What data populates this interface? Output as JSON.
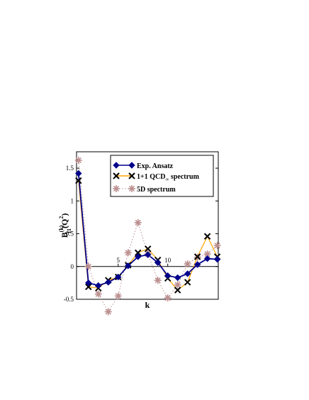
{
  "chart_data": {
    "type": "line",
    "xlabel": "k",
    "ylabel_main": "B",
    "ylabel_sup": "(k)",
    "ylabel_sub": "11",
    "ylabel_arg": "(Q",
    "ylabel_arg_sup": "2",
    "ylabel_arg_close": ")",
    "xlim": [
      0.8,
      15.1
    ],
    "ylim": [
      -0.5,
      1.75
    ],
    "x_ticks": [
      5,
      10
    ],
    "y_ticks": [
      -0.5,
      0,
      0.5,
      1,
      1.5
    ],
    "y_tick_labels": [
      "-0.5",
      "0",
      "0.5",
      "1",
      "1.5"
    ],
    "legend_position": "top-right",
    "series": [
      {
        "name": "Exp. Ansatz",
        "color": "#00008B",
        "marker": "diamond",
        "line": "solid",
        "x": [
          1,
          2,
          3,
          4,
          5,
          6,
          7,
          8,
          9,
          10,
          11,
          12,
          13,
          14,
          15
        ],
        "y": [
          1.42,
          -0.25,
          -0.29,
          -0.24,
          -0.16,
          0.01,
          0.15,
          0.18,
          0.06,
          -0.14,
          -0.17,
          -0.11,
          0.03,
          0.12,
          0.11
        ]
      },
      {
        "name": "1+1 QCD∞ spectrum",
        "name_main": "1+1 QCD",
        "name_sub": "∞",
        "name_tail": " spectrum",
        "color": "#FFA500",
        "marker": "x",
        "line": "solid",
        "x": [
          1,
          2,
          3,
          4,
          5,
          6,
          7,
          8,
          9,
          10,
          11,
          12,
          13,
          14,
          15
        ],
        "y": [
          1.31,
          -0.31,
          -0.33,
          -0.21,
          -0.16,
          0.02,
          0.21,
          0.27,
          0.1,
          -0.18,
          -0.36,
          -0.24,
          0.15,
          0.46,
          0.15
        ]
      },
      {
        "name": "5D  spectrum",
        "color": "#BC8F8F",
        "marker": "asterisk",
        "line": "dotted",
        "x": [
          1,
          2,
          3,
          4,
          5,
          6,
          7,
          8,
          9,
          10,
          11,
          12,
          13,
          14,
          15
        ],
        "y": [
          1.62,
          0.0,
          -0.42,
          -0.69,
          -0.45,
          0.21,
          0.67,
          0.19,
          -0.21,
          -0.48,
          -0.28,
          0.04,
          0.14,
          0.19,
          0.32
        ]
      }
    ]
  }
}
